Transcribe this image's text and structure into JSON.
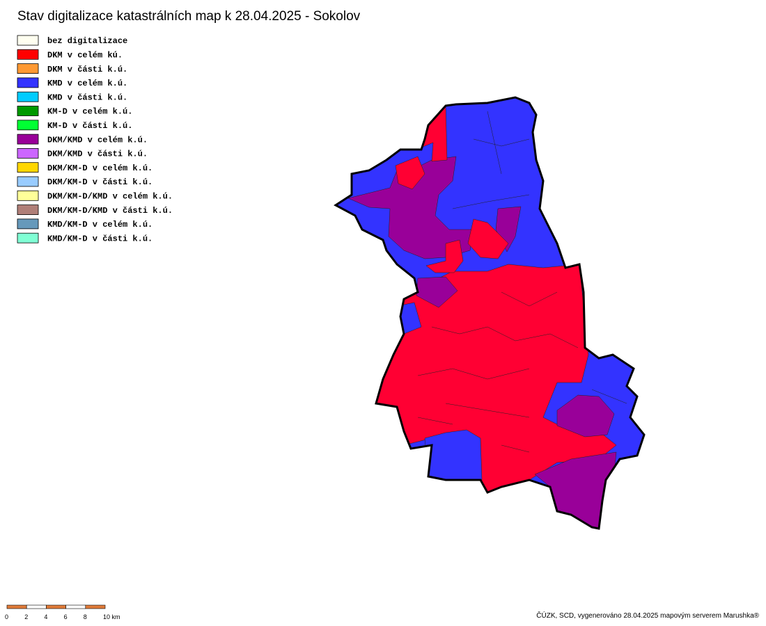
{
  "title": "Stav digitalizace katastrálních map k 28.04.2025 - Sokolov",
  "legend": [
    {
      "label": "bez digitalizace",
      "color": "#fffff0"
    },
    {
      "label": "DKM v celém kú.",
      "color": "#ff0000"
    },
    {
      "label": "DKM v části k.ú.",
      "color": "#ff9933"
    },
    {
      "label": "KMD v celém k.ú.",
      "color": "#3333ff"
    },
    {
      "label": "KMD v části k.ú.",
      "color": "#00ccff"
    },
    {
      "label": "KM-D v celém k.ú.",
      "color": "#009900"
    },
    {
      "label": "KM-D v části k.ú.",
      "color": "#00ff33"
    },
    {
      "label": "DKM/KMD v celém k.ú.",
      "color": "#990099"
    },
    {
      "label": "DKM/KMD v části k.ú.",
      "color": "#cc66ff"
    },
    {
      "label": "DKM/KM-D v celém k.ú.",
      "color": "#ffd700"
    },
    {
      "label": "DKM/KM-D v části k.ú.",
      "color": "#99ccff"
    },
    {
      "label": "DKM/KM-D/KMD v celém k.ú.",
      "color": "#ffff99"
    },
    {
      "label": "DKM/KM-D/KMD v části k.ú.",
      "color": "#b07f78"
    },
    {
      "label": "KMD/KM-D v celém k.ú.",
      "color": "#6699bb"
    },
    {
      "label": "KMD/KM-D v části k.ú.",
      "color": "#80ffd4"
    }
  ],
  "scale_bar": {
    "labels": [
      "0",
      "2",
      "4",
      "6",
      "8",
      "10 km"
    ],
    "color": "#e07b39"
  },
  "credits": "ČÚZK, SCD, vygenerováno 28.04.2025 mapovým serverem Marushka®"
}
